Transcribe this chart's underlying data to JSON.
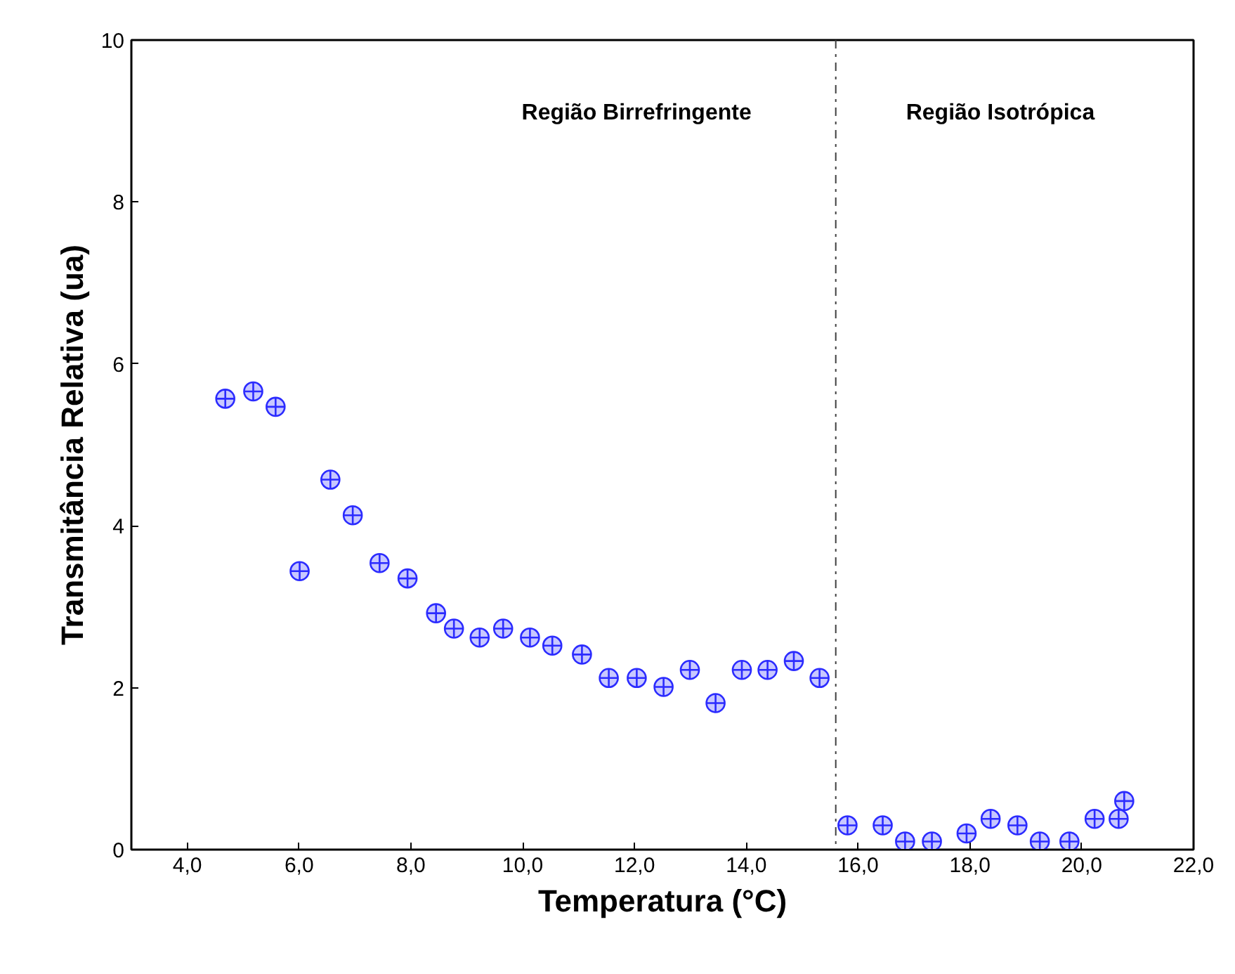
{
  "chart_data": {
    "type": "scatter",
    "xlabel": "Temperatura (°C)",
    "ylabel": "Transmitância Relativa (ua)",
    "x": [
      4.68,
      5.18,
      5.58,
      6.01,
      6.56,
      6.96,
      7.44,
      7.94,
      8.45,
      8.77,
      9.23,
      9.65,
      10.13,
      10.53,
      11.06,
      11.54,
      12.04,
      12.52,
      12.99,
      13.45,
      13.92,
      14.38,
      14.85,
      15.31,
      15.81,
      16.44,
      16.84,
      17.32,
      17.94,
      18.37,
      18.85,
      19.25,
      19.78,
      20.23,
      20.66,
      20.76
    ],
    "series": [
      {
        "color": "#2b2bff",
        "values": [
          5.57,
          5.66,
          5.47,
          3.44,
          4.57,
          4.13,
          3.54,
          3.35,
          2.92,
          2.73,
          2.62,
          2.73,
          2.62,
          2.52,
          2.41,
          2.12,
          2.12,
          2.01,
          2.22,
          1.81,
          2.22,
          2.22,
          2.33,
          2.12,
          0.3,
          0.3,
          0.1,
          0.1,
          0.2,
          0.38,
          0.3,
          0.1,
          0.1,
          0.38,
          0.38,
          0.6
        ]
      }
    ],
    "xlim": [
      3.0,
      22.0
    ],
    "ylim": [
      0,
      10
    ],
    "xticks": [
      {
        "value": 4,
        "label": "4,0"
      },
      {
        "value": 6,
        "label": "6,0"
      },
      {
        "value": 8,
        "label": "8,0"
      },
      {
        "value": 10,
        "label": "10,0"
      },
      {
        "value": 12,
        "label": "12,0"
      },
      {
        "value": 14,
        "label": "14,0"
      },
      {
        "value": 16,
        "label": "16,0"
      },
      {
        "value": 18,
        "label": "18,0"
      },
      {
        "value": 20,
        "label": "20,0"
      },
      {
        "value": 22,
        "label": "22,0"
      }
    ],
    "yticks": [
      0,
      2,
      4,
      6,
      8,
      10
    ],
    "ref_lines": [
      {
        "axis": "x",
        "value": 15.6,
        "line_style": "dashdot",
        "color": "#404040"
      }
    ],
    "annotations": [
      "Região Birrefringente",
      "Região Isotrópica"
    ],
    "marker": "circle",
    "grid": false
  }
}
